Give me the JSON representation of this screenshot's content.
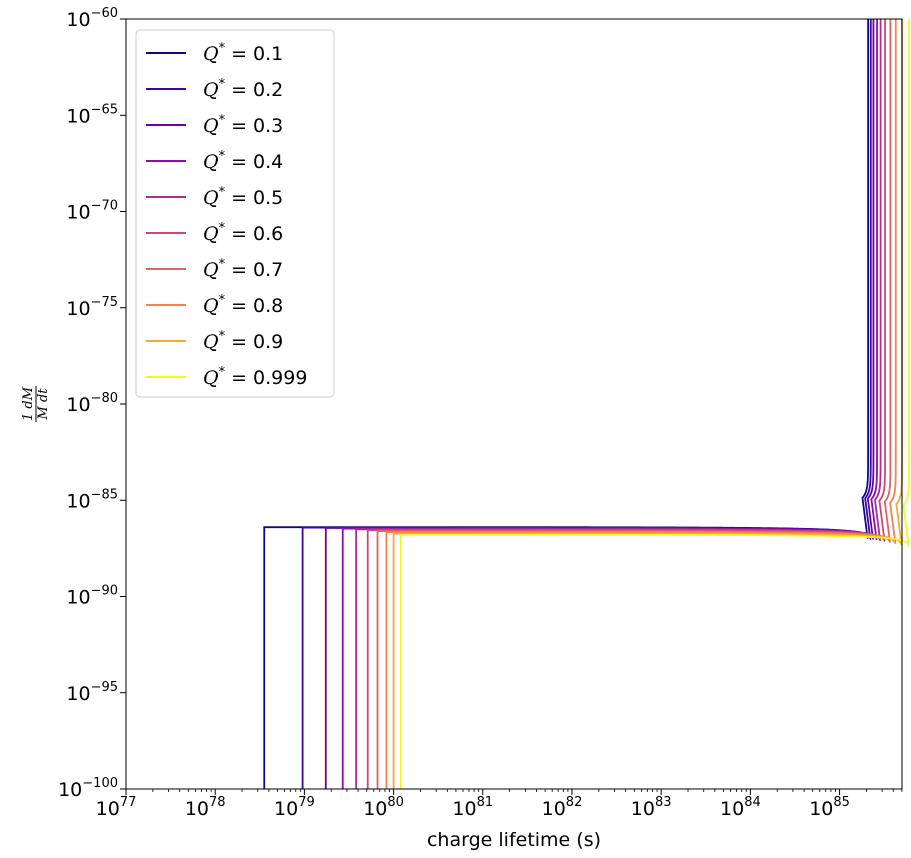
{
  "chart_data": {
    "type": "line",
    "title": "",
    "xlabel": "charge lifetime (s)",
    "ylabel": {
      "numerator": "1 dM",
      "denominator": "M dt"
    },
    "x_scale": "log",
    "y_scale": "log",
    "xlim_log10": [
      77,
      85.7
    ],
    "ylim_log10": [
      -100,
      -60
    ],
    "x_ticks": [
      {
        "base": "10",
        "exp": "77",
        "log10": 77
      },
      {
        "base": "10",
        "exp": "78",
        "log10": 78
      },
      {
        "base": "10",
        "exp": "79",
        "log10": 79
      },
      {
        "base": "10",
        "exp": "80",
        "log10": 80
      },
      {
        "base": "10",
        "exp": "81",
        "log10": 81
      },
      {
        "base": "10",
        "exp": "82",
        "log10": 82
      },
      {
        "base": "10",
        "exp": "83",
        "log10": 83
      },
      {
        "base": "10",
        "exp": "84",
        "log10": 84
      },
      {
        "base": "10",
        "exp": "85",
        "log10": 85
      }
    ],
    "y_ticks": [
      {
        "base": "10",
        "exp": "−60",
        "log10": -60
      },
      {
        "base": "10",
        "exp": "−65",
        "log10": -65
      },
      {
        "base": "10",
        "exp": "−70",
        "log10": -70
      },
      {
        "base": "10",
        "exp": "−75",
        "log10": -75
      },
      {
        "base": "10",
        "exp": "−80",
        "log10": -80
      },
      {
        "base": "10",
        "exp": "−85",
        "log10": -85
      },
      {
        "base": "10",
        "exp": "−90",
        "log10": -90
      },
      {
        "base": "10",
        "exp": "−95",
        "log10": -95
      },
      {
        "base": "10",
        "exp": "−100",
        "log10": -100
      }
    ],
    "grid": false,
    "legend_position": "upper-left",
    "legend_prefix": "Q",
    "legend_superscript": "*",
    "series": [
      {
        "name": "= 0.1",
        "color": "#0d0887",
        "x_start_log10": 78.55,
        "plateau_log10": -86.4,
        "x_end_log10": 85.32
      },
      {
        "name": "= 0.2",
        "color": "#41049d",
        "x_start_log10": 78.98,
        "plateau_log10": -86.42,
        "x_end_log10": 85.35
      },
      {
        "name": "= 0.3",
        "color": "#6a00a8",
        "x_start_log10": 79.24,
        "plateau_log10": -86.44,
        "x_end_log10": 85.38
      },
      {
        "name": "= 0.4",
        "color": "#8f0da4",
        "x_start_log10": 79.43,
        "plateau_log10": -86.47,
        "x_end_log10": 85.42
      },
      {
        "name": "= 0.5",
        "color": "#b12a90",
        "x_start_log10": 79.58,
        "plateau_log10": -86.51,
        "x_end_log10": 85.46
      },
      {
        "name": "= 0.6",
        "color": "#cc4778",
        "x_start_log10": 79.71,
        "plateau_log10": -86.55,
        "x_end_log10": 85.51
      },
      {
        "name": "= 0.7",
        "color": "#e16462",
        "x_start_log10": 79.82,
        "plateau_log10": -86.6,
        "x_end_log10": 85.57
      },
      {
        "name": "= 0.8",
        "color": "#f2844b",
        "x_start_log10": 79.92,
        "plateau_log10": -86.66,
        "x_end_log10": 85.63
      },
      {
        "name": "= 0.9",
        "color": "#fca636",
        "x_start_log10": 80.0,
        "plateau_log10": -86.73,
        "x_end_log10": 85.7
      },
      {
        "name": "= 0.999",
        "color": "#f0f921",
        "x_start_log10": 80.08,
        "plateau_log10": -86.8,
        "x_end_log10": 85.78
      }
    ]
  }
}
